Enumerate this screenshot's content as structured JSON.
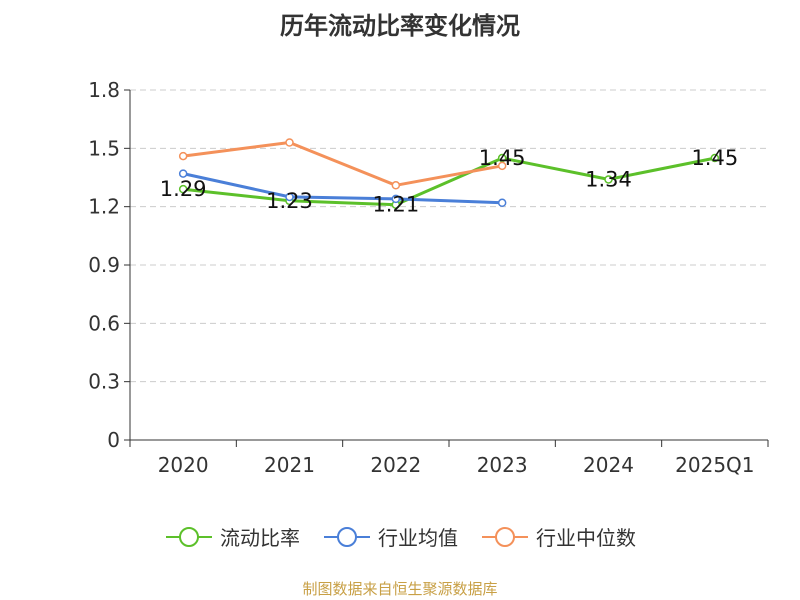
{
  "chart_data": {
    "type": "line",
    "title": "历年流动比率变化情况",
    "categories": [
      "2020",
      "2021",
      "2022",
      "2023",
      "2024",
      "2025Q1"
    ],
    "ylim": [
      0,
      1.8
    ],
    "yticks": [
      "0",
      "0.3",
      "0.6",
      "0.9",
      "1.2",
      "1.5",
      "1.8"
    ],
    "grid": true,
    "legend_position": "bottom",
    "series": [
      {
        "name": "流动比率",
        "color": "#5cc02a",
        "values": [
          1.29,
          1.23,
          1.21,
          1.45,
          1.34,
          1.45
        ],
        "labels": [
          "1.29",
          "1.23",
          "1.21",
          "1.45",
          "1.34",
          "1.45"
        ]
      },
      {
        "name": "行业均值",
        "color": "#4a7fd8",
        "values": [
          1.37,
          1.25,
          1.24,
          1.22,
          null,
          null
        ]
      },
      {
        "name": "行业中位数",
        "color": "#f4915a",
        "values": [
          1.46,
          1.53,
          1.31,
          1.41,
          null,
          null
        ]
      }
    ]
  },
  "source": "制图数据来自恒生聚源数据库"
}
